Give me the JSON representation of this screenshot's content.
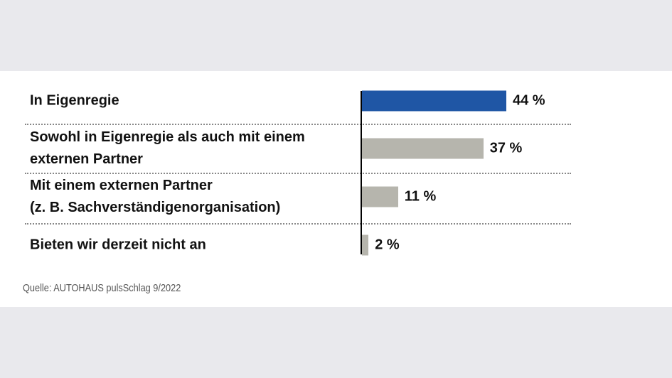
{
  "chart_data": {
    "type": "bar",
    "orientation": "horizontal",
    "categories": [
      "In Eigenregie",
      "Sowohl in Eigenregie als auch mit einem\nexternen Partner",
      "Mit einem externen Partner\n(z. B. Sachverständigenorganisation)",
      "Bieten wir derzeit nicht an"
    ],
    "values": [
      44,
      37,
      11,
      2
    ],
    "value_labels": [
      "44 %",
      "37 %",
      "11 %",
      "2 %"
    ],
    "colors": [
      "#1f56a5",
      "#b6b5ad",
      "#b6b5ad",
      "#b6b5ad"
    ],
    "source": "Quelle: AUTOHAUS pulsSchlag 9/2022"
  }
}
